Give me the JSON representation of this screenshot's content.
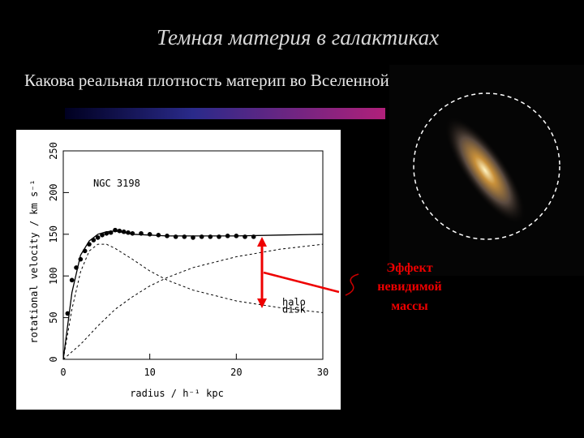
{
  "slide": {
    "title": "Темная материя в галактиках",
    "subtitle": "Какова реальная плотность материп во Вселенной?",
    "callout": [
      "Эффект",
      "невидимой",
      "массы"
    ]
  },
  "chart_data": {
    "type": "line",
    "annotation": "NGC 3198",
    "x_label": "radius / h⁻¹ kpc",
    "y_label": "rotational velocity / km s⁻¹",
    "xlim": [
      0,
      30
    ],
    "xticks": [
      0,
      10,
      20,
      30
    ],
    "ylim": [
      0,
      250
    ],
    "yticks": [
      0,
      50,
      100,
      150,
      200,
      250
    ],
    "series": [
      {
        "color": "#000000",
        "marker": "dot",
        "x": [
          0.5,
          1,
          1.5,
          2,
          2.5,
          3,
          3.5,
          4,
          4.5,
          5,
          5.5,
          6,
          6.5,
          7,
          7.5,
          8,
          9,
          10,
          11,
          12,
          13,
          14,
          15,
          16,
          17,
          18,
          19,
          20,
          21,
          22
        ],
        "values": [
          55,
          95,
          110,
          120,
          130,
          138,
          143,
          146,
          149,
          151,
          152,
          155,
          154,
          153,
          152,
          151,
          151,
          150,
          149,
          148,
          147,
          147,
          146,
          147,
          147,
          147,
          148,
          148,
          147,
          147
        ]
      },
      {
        "color": "#000000",
        "marker": "solid",
        "x": [
          0,
          1,
          2,
          3,
          4,
          5,
          6,
          7,
          8,
          10,
          12,
          15,
          20,
          25,
          30
        ],
        "values": [
          0,
          80,
          125,
          142,
          150,
          153,
          154,
          152,
          150,
          149,
          148,
          148,
          148,
          149,
          150
        ]
      },
      {
        "name": "halo",
        "color": "#000000",
        "marker": "dashed",
        "x": [
          0,
          2,
          4,
          6,
          8,
          10,
          12,
          15,
          20,
          25,
          30
        ],
        "values": [
          0,
          18,
          40,
          60,
          75,
          88,
          98,
          110,
          123,
          132,
          138
        ]
      },
      {
        "name": "disk",
        "color": "#000000",
        "marker": "dashed",
        "x": [
          0,
          1,
          2,
          3,
          4,
          5,
          6,
          8,
          10,
          12,
          15,
          20,
          25,
          30
        ],
        "values": [
          0,
          60,
          105,
          130,
          138,
          138,
          133,
          120,
          106,
          95,
          83,
          70,
          62,
          56
        ]
      }
    ]
  }
}
